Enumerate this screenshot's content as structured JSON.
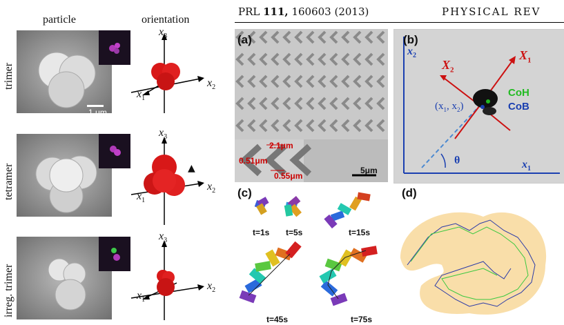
{
  "header": {
    "journal": "PRL ",
    "volume": "111,",
    "pages_year": " 160603 (2013)",
    "running_title": "PHYSICAL REV"
  },
  "left": {
    "col_particle": "particle",
    "col_orientation": "orientation",
    "rows": [
      {
        "label": "trimer",
        "scale": "1 μm"
      },
      {
        "label": "tetramer"
      },
      {
        "label": "irreg. trimer"
      }
    ],
    "axis_x1": "x",
    "axis_x2": "x",
    "axis_x3": "x",
    "sub1": "1",
    "sub2": "2",
    "sub3": "3"
  },
  "panel_a": {
    "label": "(a)",
    "dim1": "2.1μm",
    "dim2": "0.51μm",
    "dim3": "0.55μm",
    "scale": "5μm"
  },
  "panel_b": {
    "label": "(b)",
    "x2": "x",
    "x2sub": "2",
    "X2": "X",
    "X2sub": "2",
    "X1": "X",
    "X1sub": "1",
    "coh": "CoH",
    "cob": "CoB",
    "pos": "(x",
    "pos_sub1": "1",
    "pos_mid": ", x",
    "pos_sub2": "2",
    "pos_end": ")",
    "theta": "θ",
    "x1": "x",
    "x1sub": "1"
  },
  "panel_c": {
    "label": "(c)",
    "times": [
      "t=1s",
      "t=5s",
      "t=15s",
      "t=45s",
      "t=75s"
    ]
  },
  "panel_d": {
    "label": "(d)"
  },
  "colors": {
    "red_axis": "#cc1111",
    "blue_axis": "#1a3fb0",
    "green": "#22bb22",
    "orange": "#f2b640",
    "traj_blue": "#2a3aa8"
  }
}
